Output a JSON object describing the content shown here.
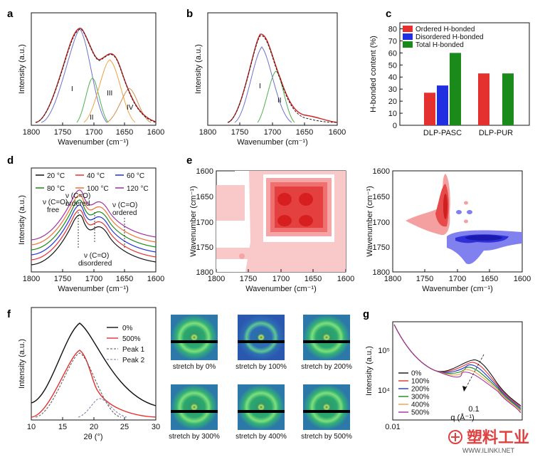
{
  "panels": {
    "a": {
      "letter": "a",
      "xlabel": "Wavenumber (cm⁻¹)",
      "ylabel": "Intensity (a.u.)",
      "ticks": [
        "1800",
        "1750",
        "1700",
        "1650",
        "1600"
      ],
      "peaks": [
        "I",
        "II",
        "III",
        "IV"
      ]
    },
    "b": {
      "letter": "b",
      "xlabel": "Wavenumber (cm⁻¹)",
      "ylabel": "Intensity (a.u.)",
      "ticks": [
        "1800",
        "1750",
        "1700",
        "1650",
        "1600"
      ],
      "peaks": [
        "I",
        "II"
      ]
    },
    "c": {
      "letter": "c",
      "ylabel": "H-bonded content (%)",
      "yticks": [
        "0",
        "10",
        "20",
        "30",
        "40",
        "50",
        "60",
        "70",
        "80"
      ]
    },
    "d": {
      "letter": "d",
      "xlabel": "Wavenumber (cm⁻¹)",
      "ylabel": "Intensity (a.u.)",
      "ticks": [
        "1800",
        "1750",
        "1700",
        "1650",
        "1600"
      ],
      "legend": [
        "20 °C",
        "40 °C",
        "60 °C",
        "80 °C",
        "100 °C",
        "120 °C"
      ],
      "ann_free": [
        "ν (C=O)",
        "free"
      ],
      "ann_ord1": [
        "ν (C=O)",
        "ordered"
      ],
      "ann_ord2": [
        "ν (C=O)",
        "ordered"
      ],
      "ann_dis": [
        "ν (C=O)",
        "disordered"
      ]
    },
    "e": {
      "letter": "e",
      "xlabel": "Wavenumber (cm⁻¹)",
      "ylabel": "Wavenumber (cm⁻¹)",
      "xticks": [
        "1800",
        "1750",
        "1700",
        "1650",
        "1600"
      ],
      "yticks": [
        "1600",
        "1650",
        "1700",
        "1750",
        "1800"
      ]
    },
    "f": {
      "letter": "f",
      "xlabel": "2θ (°)",
      "ylabel": "Intensity (a.u.)",
      "ticks": [
        "10",
        "15",
        "20",
        "25",
        "30"
      ],
      "legend": [
        "0%",
        "500%",
        "Peak 1",
        "Peak 2"
      ],
      "stretch_labels": [
        "stretch by 0%",
        "stretch by 100%",
        "stretch by 200%",
        "stretch by 300%",
        "stretch by 400%",
        "stretch by 500%"
      ]
    },
    "g": {
      "letter": "g",
      "xlabel": "q (Å⁻¹)",
      "ylabel": "Intensity (a.u.)",
      "legend": [
        "0%",
        "100%",
        "200%",
        "300%",
        "400%",
        "500%"
      ],
      "yticks": [
        "10⁵",
        "10⁴"
      ],
      "xticks": [
        "0.01",
        "0.1"
      ]
    }
  },
  "watermark": {
    "brand": "塑料工业",
    "url": "WWW.ILINKI.NET"
  },
  "colors": {
    "red": "#e53030",
    "blue": "#2030e0",
    "green": "#1a8a1a",
    "orange": "#f0a040",
    "magenta": "#a030a0",
    "black": "#111111"
  },
  "chart_data": [
    {
      "type": "line",
      "panel": "a",
      "xlim": [
        1800,
        1600
      ],
      "x_reversed": true,
      "series_note": "FTIR C=O band with 4 fitted peaks",
      "peak_centers": [
        1720,
        1700,
        1672,
        1648
      ]
    },
    {
      "type": "line",
      "panel": "b",
      "xlim": [
        1800,
        1600
      ],
      "x_reversed": true,
      "peak_centers": [
        1720,
        1700
      ]
    },
    {
      "type": "bar",
      "panel": "c",
      "categories": [
        "DLP-PASC",
        "DLP-PUR"
      ],
      "ylim": [
        0,
        85
      ],
      "series": [
        {
          "name": "Ordered H-bonded",
          "values": [
            27,
            43
          ]
        },
        {
          "name": "Disordered H-bonded",
          "values": [
            33,
            null
          ]
        },
        {
          "name": "Total H-bonded",
          "values": [
            60,
            43
          ]
        }
      ]
    },
    {
      "type": "line",
      "panel": "d",
      "xlim": [
        1800,
        1600
      ],
      "x_reversed": true
    },
    {
      "type": "heatmap",
      "panel": "e",
      "xlim": [
        1800,
        1600
      ],
      "ylim": [
        1600,
        1800
      ]
    },
    {
      "type": "line",
      "panel": "f",
      "xlim": [
        10,
        30
      ]
    },
    {
      "type": "line",
      "panel": "g",
      "xscale": "log",
      "yscale": "log"
    }
  ]
}
